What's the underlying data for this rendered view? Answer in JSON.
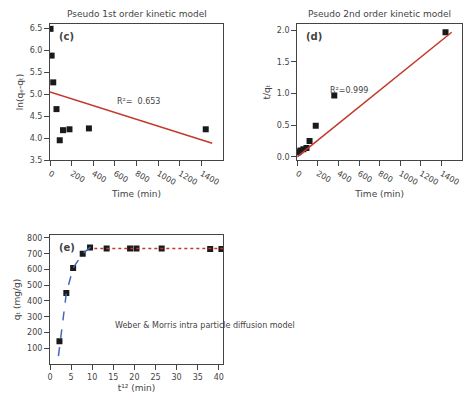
{
  "chart_data": [
    {
      "type": "scatter",
      "label": "(c)",
      "title": "Pseudo 1st order kinetic model",
      "xlabel": "Time (min)",
      "ylabel": "ln(qₑ-qₜ)",
      "series": [
        {
          "type": "scatter",
          "marker": "square",
          "color": "#1a1a1a",
          "x": [
            5,
            15,
            30,
            60,
            90,
            120,
            180,
            360,
            1440
          ],
          "values": [
            6.49,
            5.88,
            5.27,
            4.66,
            3.95,
            4.18,
            4.2,
            4.22,
            4.2
          ]
        },
        {
          "type": "line",
          "line_style": "solid",
          "color": "#c0392b",
          "x": [
            0,
            1500
          ],
          "values": [
            5.05,
            3.88
          ]
        }
      ],
      "annotations": [
        {
          "text": "R²=  0.653",
          "x": 600,
          "y": 4.68
        }
      ],
      "xlim": [
        0,
        1600
      ],
      "ylim": [
        3.5,
        6.6
      ],
      "xticks": [
        0,
        200,
        400,
        600,
        800,
        1000,
        1200,
        1400
      ],
      "yticks": [
        3.5,
        {
          "value": 4.0,
          "label": "4.0"
        },
        4.5,
        {
          "value": 5.0,
          "label": "5.0"
        },
        5.5,
        {
          "value": 6.0,
          "label": "6.0"
        },
        6.5
      ],
      "grid": false
    },
    {
      "type": "scatter",
      "label": "(d)",
      "title": "Pseudo 2nd order kinetic model",
      "xlabel": "Time (min)",
      "ylabel": "t/qₜ",
      "series": [
        {
          "type": "scatter",
          "marker": "square",
          "color": "#1a1a1a",
          "x": [
            5,
            15,
            30,
            60,
            90,
            120,
            180,
            360,
            1440
          ],
          "values": [
            0.07,
            0.08,
            0.1,
            0.12,
            0.14,
            0.25,
            0.49,
            0.97,
            1.97
          ]
        },
        {
          "type": "line",
          "line_style": "solid",
          "color": "#c0392b",
          "x": [
            0,
            1500
          ],
          "values": [
            0.0,
            1.97
          ]
        }
      ],
      "annotations": [
        {
          "text": "R²=0.999",
          "x": 300,
          "y": 0.95
        }
      ],
      "xlim": [
        0,
        1600
      ],
      "ylim": [
        -0.05,
        2.1
      ],
      "xticks": [
        0,
        200,
        400,
        600,
        800,
        1000,
        1200,
        1400
      ],
      "yticks": [
        {
          "value": 0.0,
          "label": "0.0"
        },
        0.5,
        {
          "value": 1.0,
          "label": "1.0"
        },
        1.5,
        {
          "value": 2.0,
          "label": "2.0"
        }
      ],
      "grid": false
    },
    {
      "type": "scatter",
      "label": "(e)",
      "xlabel": "t¹² (min)",
      "ylabel": "qₜ (mg/g)",
      "series": [
        {
          "type": "scatter",
          "marker": "square",
          "color": "#1a1a1a",
          "x": [
            2.24,
            3.87,
            5.48,
            7.75,
            9.49,
            13.42,
            18.97,
            20.49,
            26.46,
            37.95,
            40.62
          ],
          "values": [
            145,
            450,
            610,
            700,
            740,
            733,
            733,
            733,
            733,
            730,
            730
          ]
        },
        {
          "type": "line",
          "line_style": "dashed",
          "color": "#4466bb",
          "x": [
            2.0,
            3.87,
            5.48,
            7.75,
            9.49,
            10.8
          ],
          "values": [
            50,
            450,
            610,
            700,
            740,
            745
          ]
        },
        {
          "type": "line",
          "line_style": "dotted",
          "color": "#c0392b",
          "x": [
            10.5,
            41
          ],
          "values": [
            733,
            733
          ]
        }
      ],
      "annotations": [
        {
          "text": "Weber & Morris intra particle diffusion model",
          "x": 15,
          "y": 200
        }
      ],
      "xlim": [
        0,
        41
      ],
      "ylim": [
        0,
        820
      ],
      "xticks": [
        0,
        5,
        10,
        15,
        20,
        25,
        30,
        35,
        40
      ],
      "yticks": [
        100,
        200,
        300,
        400,
        500,
        600,
        700,
        800
      ],
      "grid": false
    }
  ]
}
